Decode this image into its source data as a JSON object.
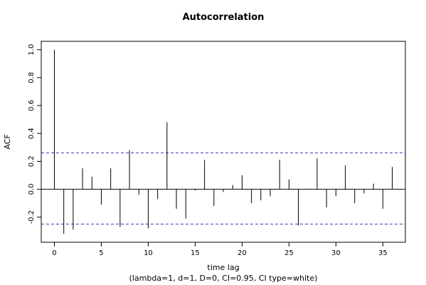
{
  "chart_data": {
    "type": "bar",
    "title": "Autocorrelation",
    "xlabel": "time lag",
    "subtitle": "(lambda=1, d=1, D=0, CI=0.95, CI type=white)",
    "ylabel": "ACF",
    "xlim": [
      -1.4,
      37.4
    ],
    "ylim": [
      -0.38,
      1.06
    ],
    "x_ticks": [
      0,
      5,
      10,
      15,
      20,
      25,
      30,
      35
    ],
    "y_ticks": [
      -0.2,
      0.0,
      0.2,
      0.4,
      0.6,
      0.8,
      1.0
    ],
    "y_tick_labels": [
      "-0.2",
      "0.0",
      "0.2",
      "0.4",
      "0.6",
      "0.8",
      "1.0"
    ],
    "ci_upper": 0.26,
    "ci_lower": -0.25,
    "ci_color": "#3b3bb3",
    "lags": [
      0,
      1,
      2,
      3,
      4,
      5,
      6,
      7,
      8,
      9,
      10,
      11,
      12,
      13,
      14,
      15,
      16,
      17,
      18,
      19,
      20,
      21,
      22,
      23,
      24,
      25,
      26,
      27,
      28,
      29,
      30,
      31,
      32,
      33,
      34,
      35,
      36
    ],
    "values": [
      1.0,
      -0.32,
      -0.29,
      0.15,
      0.09,
      -0.11,
      0.15,
      -0.27,
      0.28,
      -0.04,
      -0.28,
      -0.07,
      0.48,
      -0.14,
      -0.21,
      -0.01,
      0.21,
      -0.12,
      -0.02,
      0.03,
      0.1,
      -0.1,
      -0.08,
      -0.05,
      0.21,
      0.07,
      -0.26,
      0.0,
      0.22,
      -0.13,
      -0.05,
      0.17,
      -0.1,
      -0.03,
      0.04,
      -0.14,
      0.16
    ]
  }
}
